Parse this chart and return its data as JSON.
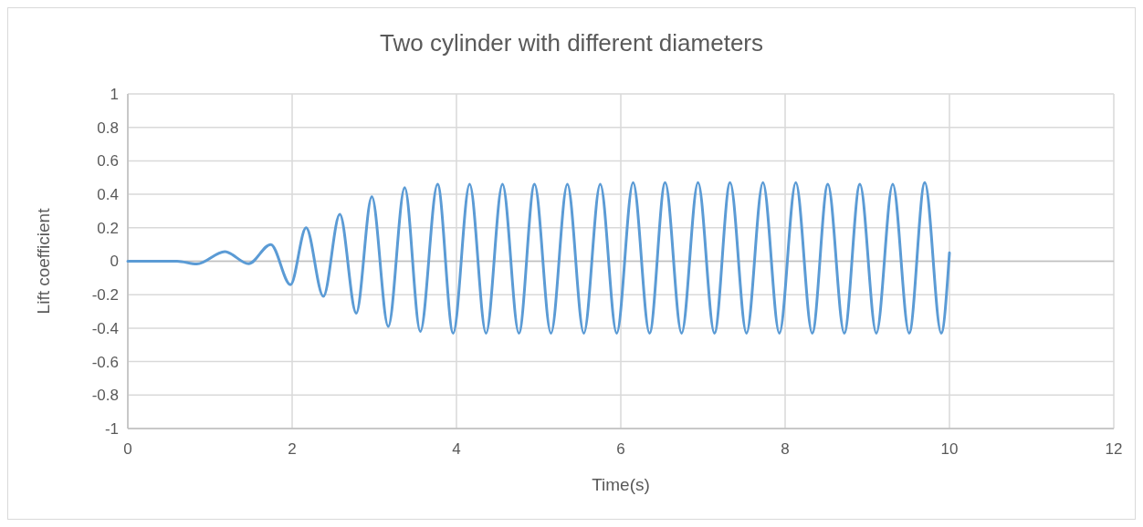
{
  "chart_data": {
    "type": "line",
    "title": "Two cylinder with different diameters",
    "xlabel": "Time(s)",
    "ylabel": "Lift coefficient",
    "xlim": [
      0,
      12
    ],
    "xticks": [
      0,
      2,
      4,
      6,
      8,
      10,
      12
    ],
    "ylim": [
      -1,
      1
    ],
    "yticks": [
      {
        "value": -1,
        "label": "-1"
      },
      {
        "value": -0.8,
        "label": "-0.8"
      },
      {
        "value": -0.6,
        "label": "-0.6"
      },
      {
        "value": -0.4,
        "label": "-0.4"
      },
      {
        "value": -0.2,
        "label": "-0.2"
      },
      0,
      {
        "value": 0.2,
        "label": "0.2"
      },
      {
        "value": 0.4,
        "label": "0.4"
      },
      {
        "value": 0.6,
        "label": "0.6"
      },
      {
        "value": 0.8,
        "label": "0.8"
      },
      1
    ],
    "grid": true,
    "marker": "none",
    "line_style": "solid",
    "series": [
      {
        "color": "#5b9bd5",
        "x": [
          0,
          0.6,
          0.84,
          1.18,
          1.47,
          1.74,
          1.98,
          2.17,
          2.38,
          2.58,
          2.78,
          2.97,
          3.17,
          3.37,
          3.56,
          3.77,
          3.96,
          4.16,
          4.36,
          4.56,
          4.76,
          4.95,
          5.15,
          5.35,
          5.55,
          5.75,
          5.95,
          6.15,
          6.35,
          6.54,
          6.74,
          6.94,
          7.14,
          7.33,
          7.53,
          7.73,
          7.93,
          8.13,
          8.33,
          8.52,
          8.72,
          8.91,
          9.11,
          9.31,
          9.51,
          9.7,
          9.9,
          10
        ],
        "values": [
          0,
          0,
          -0.017,
          0.057,
          -0.015,
          0.1,
          -0.14,
          0.2,
          -0.21,
          0.28,
          -0.31,
          0.385,
          -0.39,
          0.44,
          -0.42,
          0.46,
          -0.43,
          0.46,
          -0.43,
          0.46,
          -0.43,
          0.46,
          -0.43,
          0.46,
          -0.43,
          0.46,
          -0.43,
          0.47,
          -0.43,
          0.47,
          -0.43,
          0.47,
          -0.43,
          0.47,
          -0.43,
          0.47,
          -0.43,
          0.47,
          -0.43,
          0.46,
          -0.43,
          0.46,
          -0.43,
          0.46,
          -0.43,
          0.47,
          -0.43,
          0.05
        ]
      }
    ]
  }
}
